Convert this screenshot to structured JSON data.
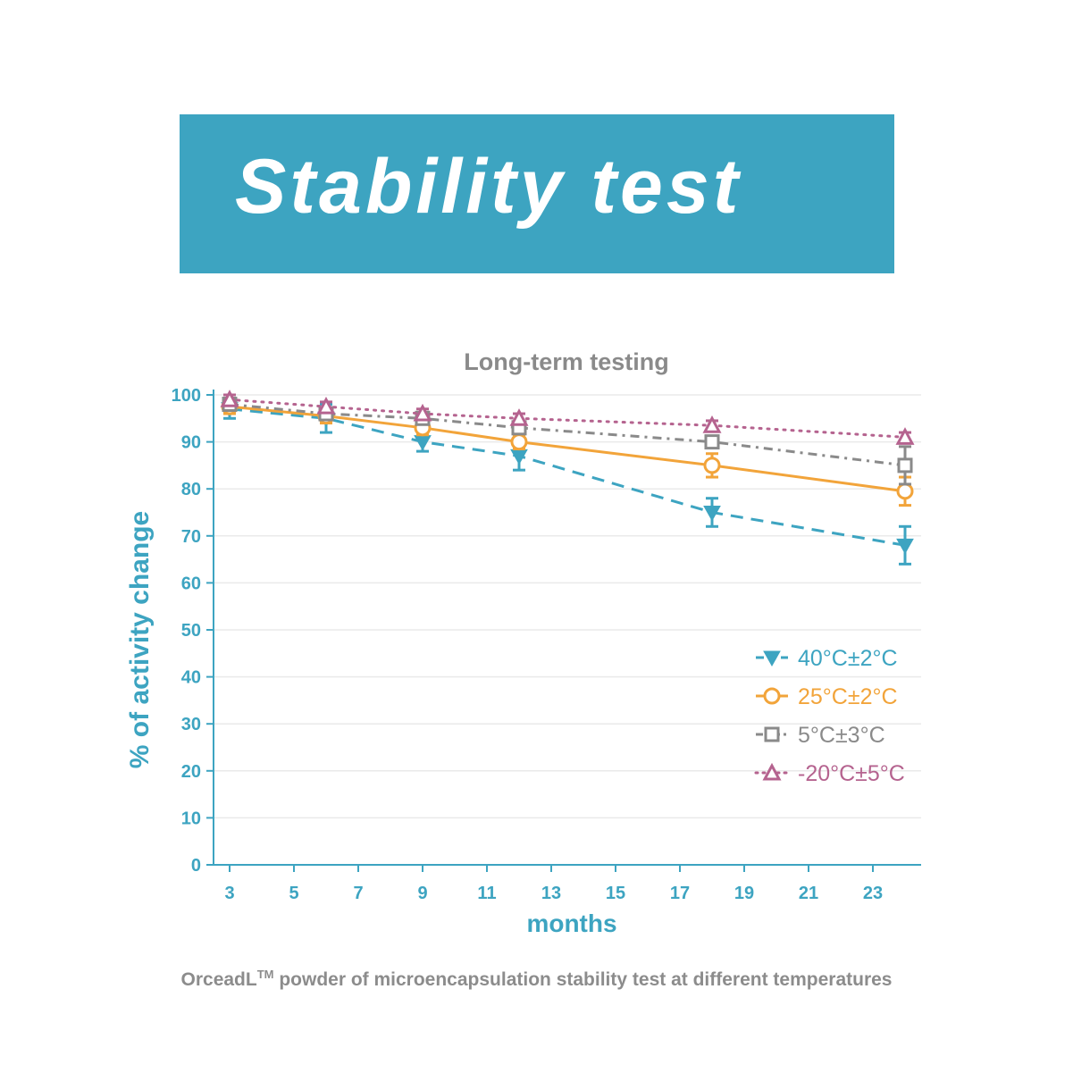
{
  "header": {
    "title": "Stability test"
  },
  "chart_data": {
    "type": "line",
    "title": "Long-term testing",
    "xlabel": "months",
    "ylabel": "% of activity change",
    "xlim": [
      2.5,
      24.5
    ],
    "ylim": [
      0,
      100
    ],
    "xticks": [
      3,
      5,
      7,
      9,
      11,
      13,
      15,
      17,
      19,
      21,
      23
    ],
    "yticks": [
      0,
      10,
      20,
      30,
      40,
      50,
      60,
      70,
      80,
      90,
      100
    ],
    "grid": true,
    "legend_position": "bottom-right",
    "x": [
      3,
      6,
      9,
      12,
      18,
      24
    ],
    "series": [
      {
        "name": "40°C±2°C",
        "color": "#3da4c1",
        "marker": "triangle-down",
        "line": "dashed",
        "values": [
          97,
          95,
          90,
          87,
          75,
          68
        ],
        "errors": [
          2,
          3,
          2,
          3,
          3,
          4
        ]
      },
      {
        "name": "25°C±2°C",
        "color": "#f2a43a",
        "marker": "circle",
        "line": "solid",
        "values": [
          97.5,
          95.5,
          93,
          90,
          85,
          79.5
        ],
        "errors": [
          1.5,
          1.5,
          1.5,
          1.5,
          2.5,
          3
        ]
      },
      {
        "name": "5°C±3°C",
        "color": "#8a8a8a",
        "marker": "square",
        "line": "dash-dot",
        "values": [
          98,
          96,
          95,
          93,
          90,
          85
        ],
        "errors": [
          1,
          1,
          1,
          1,
          1,
          4
        ]
      },
      {
        "name": "-20°C±5°C",
        "color": "#b5638f",
        "marker": "triangle-up",
        "line": "dotted",
        "values": [
          99,
          97.5,
          96,
          95,
          93.5,
          91
        ],
        "errors": [
          1,
          1,
          1,
          1,
          1,
          1
        ]
      }
    ]
  },
  "caption": {
    "text": "OrceadL",
    "tm": "TM",
    "rest": " powder of microencapsulation stability test at different temperatures"
  }
}
